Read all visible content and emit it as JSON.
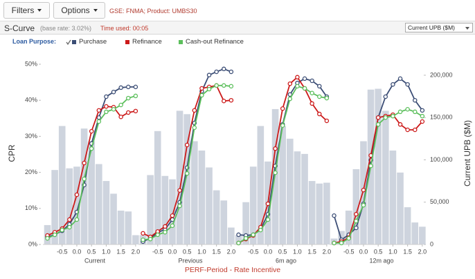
{
  "toolbar": {
    "filters": "Filters",
    "options": "Options",
    "context": "GSE: FNMA; Product: UMBS30"
  },
  "header": {
    "title": "S-Curve",
    "base_rate": "(base rate: 3.02%)",
    "time_used": "Time used: 00:05",
    "dropdown": "Current UPB ($M)"
  },
  "chart_data": {
    "type": "line",
    "legend_title": "Loan Purpose:",
    "xlabel": "PERF-Period - Rate Incentive",
    "ylabel": "CPR",
    "y2label": "Current UPB ($M)",
    "x": [
      -1,
      -0.75,
      -0.5,
      -0.25,
      0,
      0.25,
      0.5,
      0.75,
      1,
      1.25,
      1.5,
      1.75,
      2
    ],
    "xlim": [
      -1.2,
      2.05
    ],
    "xticks": [
      -0.5,
      {
        "value": 0,
        "label": "0.0"
      },
      0.5,
      {
        "value": 1,
        "label": "1.0"
      },
      1.5,
      {
        "value": 2,
        "label": "2.0"
      }
    ],
    "ylim": [
      0,
      50
    ],
    "yticks": [
      {
        "value": 0,
        "label": "0%"
      },
      {
        "value": 10,
        "label": "10%"
      },
      {
        "value": 20,
        "label": "20%"
      },
      {
        "value": 30,
        "label": "30%"
      },
      {
        "value": 40,
        "label": "40%"
      },
      {
        "value": 50,
        "label": "50%"
      }
    ],
    "y2lim": [
      0,
      213000
    ],
    "y2ticks": [
      0,
      {
        "value": 50000,
        "label": "50,000"
      },
      {
        "value": 100000,
        "label": "100,000"
      },
      {
        "value": 150000,
        "label": "150,000"
      },
      {
        "value": 200000,
        "label": "200,000"
      }
    ],
    "grid": false,
    "bar_color": "#c5ccd8",
    "series": [
      {
        "name": "Purchase",
        "color": "#3b4d75"
      },
      {
        "name": "Refinance",
        "color": "#cc1a1a"
      },
      {
        "name": "Cash-out Refinance",
        "color": "#5cbf5c"
      }
    ],
    "panels": [
      {
        "label": "Current",
        "upb": [
          22900,
          88000,
          140000,
          90000,
          92000,
          137000,
          122000,
          95000,
          75000,
          60000,
          40000,
          39000,
          11000
        ],
        "values": [
          [
            2.1,
            2.7,
            3.8,
            5.6,
            9.0,
            16.5,
            28.0,
            35.2,
            41.0,
            42.3,
            43.5,
            43.7,
            43.7
          ],
          [
            2.5,
            3.4,
            4.4,
            6.9,
            13.8,
            22.6,
            31.4,
            37.2,
            38.3,
            38.1,
            35.4,
            36.6,
            37.0
          ],
          [
            1.7,
            2.7,
            4.0,
            4.8,
            6.9,
            18.2,
            26.6,
            34.1,
            36.8,
            37.5,
            38.7,
            40.6,
            41.2
          ]
        ]
      },
      {
        "label": "Previous",
        "upb": [
          11000,
          82000,
          134000,
          81000,
          77000,
          158000,
          154000,
          122000,
          111000,
          91000,
          64000,
          52000,
          20000
        ],
        "values": [
          [
            0.8,
            1.7,
            3.3,
            4.2,
            6.9,
            11.7,
            21.3,
            33.7,
            42.5,
            47.0,
            47.9,
            48.7,
            47.9
          ],
          [
            3.1,
            2.1,
            3.6,
            5.0,
            8.0,
            15.0,
            27.6,
            37.2,
            43.3,
            43.7,
            44.1,
            39.8,
            40.0
          ],
          [
            1.3,
            1.5,
            2.7,
            3.4,
            5.2,
            10.7,
            19.7,
            32.4,
            41.4,
            43.1,
            44.1,
            44.1,
            43.9
          ]
        ]
      },
      {
        "label": "6m ago",
        "upb": [
          11000,
          50000,
          92000,
          140000,
          98000,
          160000,
          140000,
          125000,
          110000,
          107000,
          75000,
          72000,
          73000
        ],
        "values": [
          [
            2.7,
            2.5,
            2.7,
            4.2,
            8.4,
            21.8,
            33.3,
            41.6,
            44.8,
            46.0,
            45.4,
            43.9,
            41.0
          ],
          [
            0.4,
            1.5,
            2.5,
            4.8,
            11.3,
            26.6,
            37.7,
            44.6,
            46.4,
            43.3,
            39.1,
            36.2,
            34.3
          ],
          [
            0.4,
            1.7,
            2.7,
            4.0,
            6.9,
            19.9,
            33.0,
            40.4,
            43.9,
            43.3,
            42.0,
            41.0,
            40.6
          ]
        ]
      },
      {
        "label": "12m ago",
        "upb": [
          7000,
          16000,
          40000,
          89000,
          122000,
          183000,
          184000,
          158000,
          111000,
          85000,
          44000,
          26000,
          21000
        ],
        "values": [
          [
            8.0,
            1.3,
            2.7,
            4.6,
            11.3,
            23.4,
            35.2,
            41.0,
            44.4,
            46.0,
            44.4,
            40.0,
            37.2
          ],
          [
            0.4,
            0.8,
            1.9,
            8.4,
            15.1,
            24.7,
            35.2,
            35.6,
            36.0,
            33.3,
            31.8,
            31.8,
            34.1
          ],
          [
            0.4,
            0.4,
            1.7,
            6.5,
            10.9,
            21.8,
            33.3,
            35.2,
            35.6,
            36.8,
            37.5,
            36.8,
            35.6
          ]
        ]
      }
    ]
  }
}
